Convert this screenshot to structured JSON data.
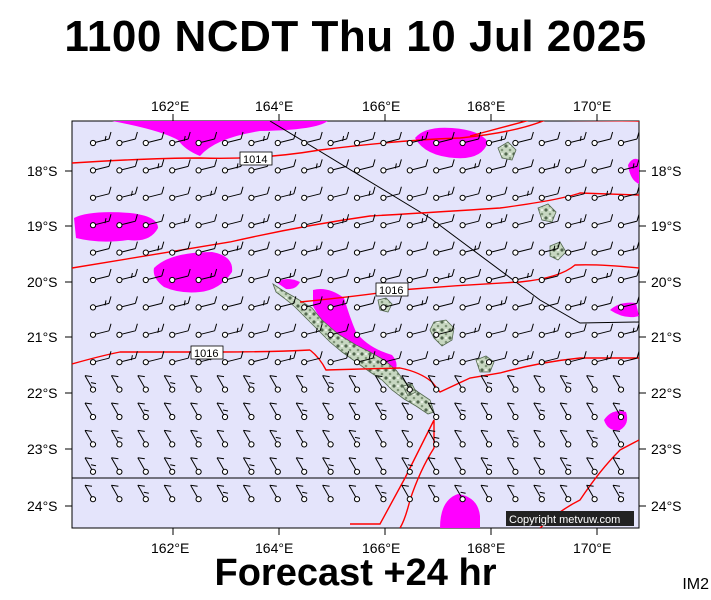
{
  "title": "1100 NCDT Thu 10 Jul 2025",
  "footer": "Forecast +24 hr",
  "product_code": "IM2",
  "copyright": "Copyright metvuw.com",
  "axes": {
    "lon_labels": [
      "162°E",
      "164°E",
      "166°E",
      "168°E",
      "170°E"
    ],
    "lat_labels": [
      "18°S",
      "19°S",
      "20°S",
      "21°S",
      "22°S",
      "23°S",
      "24°S"
    ]
  },
  "isobars": [
    {
      "label": "1014"
    },
    {
      "label": "1016"
    },
    {
      "label": "1016"
    }
  ],
  "colors": {
    "sea": "#e4e4fb",
    "isobar": "#ff0000",
    "rain": "#ff00ff",
    "land_fill": "#c7d7c1",
    "land_dark": "#53684f",
    "wind": "#000000"
  }
}
